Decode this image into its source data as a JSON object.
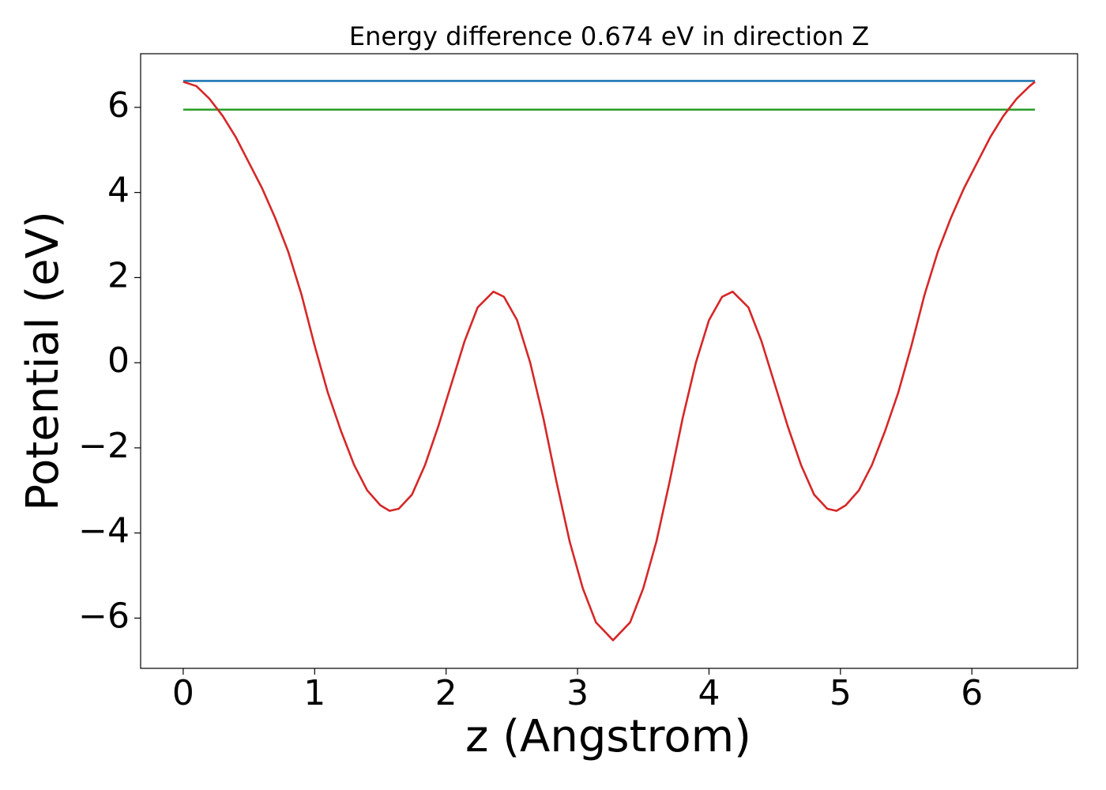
{
  "chart_data": {
    "type": "line",
    "title": "Energy difference 0.674 eV in direction Z",
    "xlabel": "z (Angstrom)",
    "ylabel": "Potential (eV)",
    "xlim": [
      -0.324,
      6.804
    ],
    "ylim": [
      -7.18,
      7.26
    ],
    "xticks": [
      0,
      1,
      2,
      3,
      4,
      5,
      6
    ],
    "yticks": [
      {
        "value": -6,
        "label": "−6"
      },
      {
        "value": -4,
        "label": "−4"
      },
      {
        "value": -2,
        "label": "−2"
      },
      0,
      2,
      4,
      6
    ],
    "series": [
      {
        "color": "#1f77b4",
        "x": [
          0,
          6.48
        ],
        "values": [
          6.62,
          6.62
        ]
      },
      {
        "color": "#2ca02c",
        "x": [
          0,
          6.48
        ],
        "values": [
          5.946,
          5.946
        ]
      },
      {
        "color": "#d62728",
        "x": [
          0,
          0.1,
          0.2,
          0.3,
          0.4,
          0.5,
          0.6,
          0.7,
          0.8,
          0.9,
          1.0,
          1.1,
          1.2,
          1.3,
          1.4,
          1.5,
          1.57,
          1.64,
          1.74,
          1.84,
          1.94,
          2.04,
          2.14,
          2.24,
          2.36,
          2.44,
          2.54,
          2.64,
          2.74,
          2.84,
          2.94,
          3.04,
          3.14,
          3.27,
          3.4,
          3.5,
          3.6,
          3.7,
          3.8,
          3.9,
          4.0,
          4.1,
          4.18,
          4.3,
          4.4,
          4.5,
          4.6,
          4.7,
          4.8,
          4.9,
          4.97,
          5.04,
          5.14,
          5.24,
          5.34,
          5.44,
          5.54,
          5.64,
          5.74,
          5.84,
          5.94,
          6.04,
          6.14,
          6.24,
          6.34,
          6.44,
          6.48
        ],
        "values": [
          6.6,
          6.5,
          6.2,
          5.8,
          5.3,
          4.7,
          4.1,
          3.4,
          2.6,
          1.6,
          0.4,
          -0.7,
          -1.6,
          -2.4,
          -3.0,
          -3.35,
          -3.48,
          -3.43,
          -3.1,
          -2.4,
          -1.5,
          -0.5,
          0.5,
          1.3,
          1.67,
          1.55,
          1.0,
          0.0,
          -1.3,
          -2.8,
          -4.2,
          -5.3,
          -6.1,
          -6.52,
          -6.1,
          -5.3,
          -4.2,
          -2.8,
          -1.3,
          0.0,
          1.0,
          1.55,
          1.67,
          1.3,
          0.5,
          -0.5,
          -1.5,
          -2.4,
          -3.1,
          -3.43,
          -3.48,
          -3.35,
          -3.0,
          -2.4,
          -1.6,
          -0.7,
          0.4,
          1.6,
          2.6,
          3.4,
          4.1,
          4.7,
          5.3,
          5.8,
          6.2,
          6.5,
          6.6
        ]
      }
    ]
  }
}
